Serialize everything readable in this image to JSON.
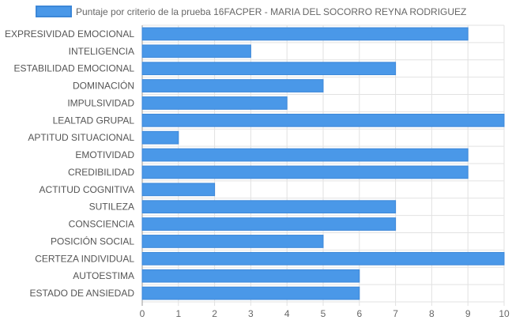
{
  "chart_data": {
    "type": "bar",
    "orientation": "horizontal",
    "legend_position": "top",
    "grid": true,
    "xlim": [
      0,
      10
    ],
    "x_ticks": [
      0,
      1,
      2,
      3,
      4,
      5,
      6,
      7,
      8,
      9,
      10
    ],
    "categories": [
      "EXPRESIVIDAD EMOCIONAL",
      "INTELIGENCIA",
      "ESTABILIDAD EMOCIONAL",
      "DOMINACIÓN",
      "IMPULSIVIDAD",
      "LEALTAD GRUPAL",
      "APTITUD SITUACIONAL",
      "EMOTIVIDAD",
      "CREDIBILIDAD",
      "ACTITUD COGNITIVA",
      "SUTILEZA",
      "CONSCIENCIA",
      "POSICIÓN SOCIAL",
      "CERTEZA INDIVIDUAL",
      "AUTOESTIMA",
      "ESTADO DE ANSIEDAD"
    ],
    "series": [
      {
        "name": "Puntaje por criterio de la prueba 16FACPER - MARIA DEL SOCORRO REYNA RODRIGUEZ",
        "values": [
          9,
          3,
          7,
          5,
          4,
          10,
          1,
          9,
          9,
          2,
          7,
          7,
          5,
          10,
          6,
          6
        ]
      }
    ],
    "colors": {
      "bar_fill": "#4a98e8",
      "bar_stroke": "#3c87d8",
      "grid": "#e2e2e2",
      "axis": "#9a9a9a"
    }
  }
}
